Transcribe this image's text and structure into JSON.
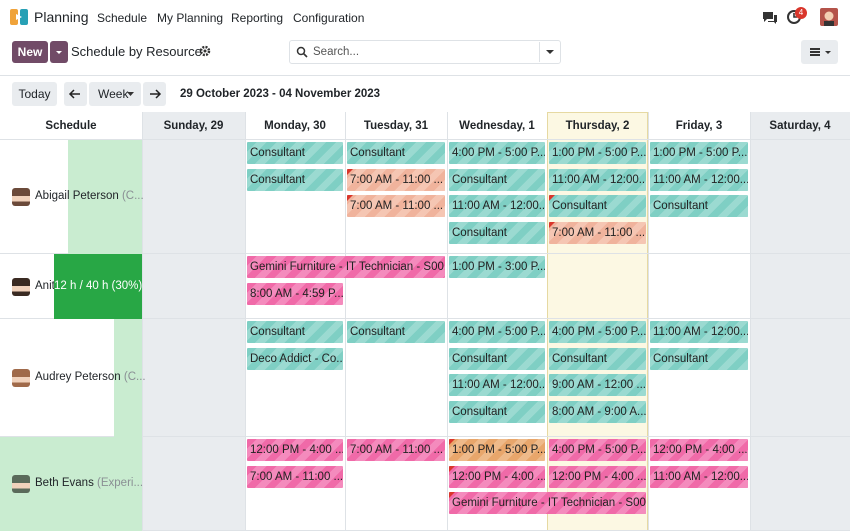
{
  "navbar": {
    "app": "Planning",
    "menu": [
      "Schedule",
      "My Planning",
      "Reporting",
      "Configuration"
    ],
    "badge": "4"
  },
  "control": {
    "new": "New",
    "title": "Schedule by Resource",
    "search": "Search..."
  },
  "toolbar": {
    "today": "Today",
    "scale": "Week",
    "range": "29 October 2023 - 04 November 2023"
  },
  "gantt": {
    "header": "Schedule",
    "days": [
      "Sunday, 29",
      "Monday, 30",
      "Tuesday, 31",
      "Wednesday, 1",
      "Thursday, 2",
      "Friday, 3",
      "Saturday, 4"
    ],
    "rows": [
      {
        "name": "Abigail Peterson",
        "role": "(C...",
        "shifts": [
          "Consultant",
          "Consultant",
          "Consultant",
          "7:00 AM - 11:00 ...",
          "7:00 AM - 11:00 ...",
          "4:00 PM - 5:00 P...",
          "Consultant",
          "11:00 AM - 12:00...",
          "Consultant",
          "1:00 PM - 5:00 P...",
          "11:00 AM - 12:00...",
          "Consultant",
          "7:00 AM - 11:00 ...",
          "1:00 PM - 5:00 P...",
          "11:00 AM - 12:00...",
          "Consultant"
        ]
      },
      {
        "name": "Anit",
        "progress": "12 h / 40 h (30%)",
        "shifts": [
          "Gemini Furniture - IT Technician - S00...",
          "8:00 AM - 4:59 P...",
          "1:00 PM - 3:00 P..."
        ]
      },
      {
        "name": "Audrey Peterson",
        "role": "(C...",
        "shifts": [
          "Consultant",
          "Deco Addict - Co...",
          "Consultant",
          "4:00 PM - 5:00 P...",
          "Consultant",
          "11:00 AM - 12:00...",
          "Consultant",
          "4:00 PM - 5:00 P...",
          "Consultant",
          "9:00 AM - 12:00 ...",
          "8:00 AM - 9:00 A...",
          "11:00 AM - 12:00...",
          "Consultant"
        ]
      },
      {
        "name": "Beth Evans",
        "role": "(Experi...",
        "shifts": [
          "12:00 PM - 4:00 ...",
          "7:00 AM - 11:00 ...",
          "7:00 AM - 11:00 ...",
          "1:00 PM - 5:00 P...",
          "12:00 PM - 4:00 ...",
          "Gemini Furniture - IT Technician - S00...",
          "4:00 PM - 5:00 P...",
          "12:00 PM - 4:00 ...",
          "12:00 PM - 4:00 ...",
          "11:00 AM - 12:00..."
        ]
      }
    ]
  }
}
